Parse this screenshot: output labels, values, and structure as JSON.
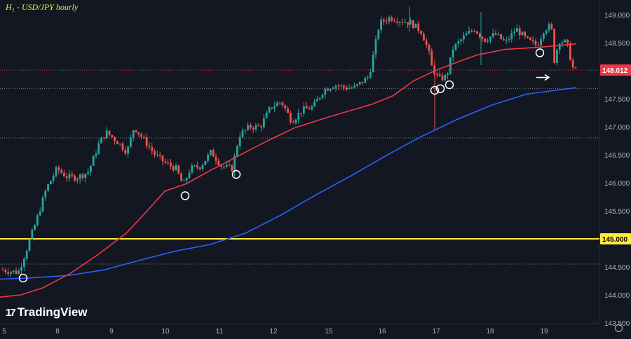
{
  "header": {
    "title": "H₁ - USD/JPY hourly"
  },
  "branding": {
    "logo_text": "TradingView",
    "logo_mark": "17"
  },
  "colors": {
    "background": "#131722",
    "bull": "#26a69a",
    "bear": "#ef5350",
    "ma_red": "#f23645",
    "ma_blue": "#2962ff",
    "level_yellow": "#ffeb3b",
    "current_price_tag": "#f23645",
    "level_tag": "#ffeb3b"
  },
  "icons": {
    "settings": "gear-icon",
    "arrow": "arrow-right-icon"
  },
  "chart_data": {
    "type": "candlestick",
    "title": "H₁ - USD/JPY hourly",
    "ylim": [
      143.5,
      149.3
    ],
    "y_ticks": [
      "149.000",
      "148.500",
      "148.000",
      "147.500",
      "147.000",
      "146.500",
      "146.000",
      "145.500",
      "145.000",
      "144.500",
      "144.000",
      "143.500"
    ],
    "x_ticks": [
      "5",
      "8",
      "9",
      "10",
      "11",
      "12",
      "15",
      "16",
      "17",
      "18",
      "19"
    ],
    "current_price": "148.012",
    "key_level": "145.000",
    "dotted_levels": [
      148.012,
      147.68,
      146.8,
      144.55
    ],
    "moving_averages": [
      {
        "color": "red",
        "points": [
          [
            0,
            143.96
          ],
          [
            30,
            144.0
          ],
          [
            60,
            144.12
          ],
          [
            100,
            144.38
          ],
          [
            140,
            144.72
          ],
          [
            180,
            145.1
          ],
          [
            210,
            145.5
          ],
          [
            235,
            145.85
          ],
          [
            265,
            145.98
          ],
          [
            300,
            146.22
          ],
          [
            340,
            146.48
          ],
          [
            380,
            146.74
          ],
          [
            420,
            146.98
          ],
          [
            470,
            147.18
          ],
          [
            530,
            147.4
          ],
          [
            560,
            147.55
          ],
          [
            590,
            147.82
          ],
          [
            620,
            148.0
          ],
          [
            645,
            148.12
          ],
          [
            680,
            148.28
          ],
          [
            720,
            148.38
          ],
          [
            770,
            148.42
          ],
          [
            822,
            148.48
          ]
        ]
      },
      {
        "color": "blue",
        "points": [
          [
            0,
            144.28
          ],
          [
            40,
            144.3
          ],
          [
            100,
            144.35
          ],
          [
            150,
            144.45
          ],
          [
            200,
            144.62
          ],
          [
            250,
            144.78
          ],
          [
            300,
            144.9
          ],
          [
            350,
            145.1
          ],
          [
            400,
            145.42
          ],
          [
            450,
            145.78
          ],
          [
            500,
            146.12
          ],
          [
            550,
            146.48
          ],
          [
            600,
            146.82
          ],
          [
            650,
            147.12
          ],
          [
            700,
            147.38
          ],
          [
            750,
            147.58
          ],
          [
            822,
            147.7
          ]
        ]
      }
    ],
    "circle_markers": [
      [
        33,
        144.3
      ],
      [
        264,
        145.77
      ],
      [
        337,
        146.15
      ],
      [
        620,
        147.65
      ],
      [
        628,
        147.68
      ],
      [
        641,
        147.75
      ],
      [
        770,
        148.32
      ]
    ],
    "arrow_marker": [
      767,
      147.88
    ]
  }
}
